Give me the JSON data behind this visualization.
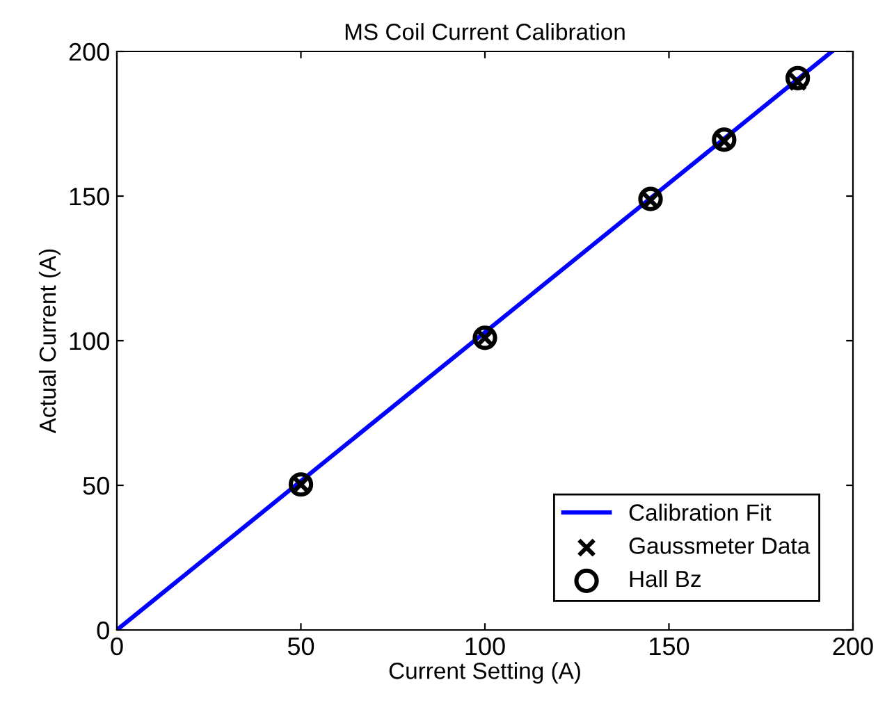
{
  "chart_data": {
    "type": "scatter",
    "title": "MS Coil Current Calibration",
    "xlabel": "Current Setting (A)",
    "ylabel": "Actual Current (A)",
    "xlim": [
      0,
      200
    ],
    "ylim": [
      0,
      200
    ],
    "xticks": [
      0,
      50,
      100,
      150,
      200
    ],
    "yticks": [
      0,
      50,
      100,
      150,
      200
    ],
    "grid": false,
    "legend": "bottom right",
    "series": [
      {
        "name": "Calibration Fit",
        "type": "line",
        "color": "#0000ff",
        "marker": "none",
        "line_style": "solid",
        "x": [
          0,
          194.3
        ],
        "values": [
          0,
          200
        ]
      },
      {
        "name": "Gaussmeter Data",
        "color": "#000000",
        "marker": "cross",
        "x": [
          50,
          100,
          145,
          165,
          185
        ],
        "values": [
          50.3,
          101,
          148.5,
          169,
          189.5
        ]
      },
      {
        "name": "Hall Bz",
        "color": "#000000",
        "marker": "circle",
        "x": [
          50,
          100,
          145,
          165,
          185
        ],
        "values": [
          50.3,
          101,
          149,
          169.5,
          190.8
        ]
      }
    ]
  }
}
